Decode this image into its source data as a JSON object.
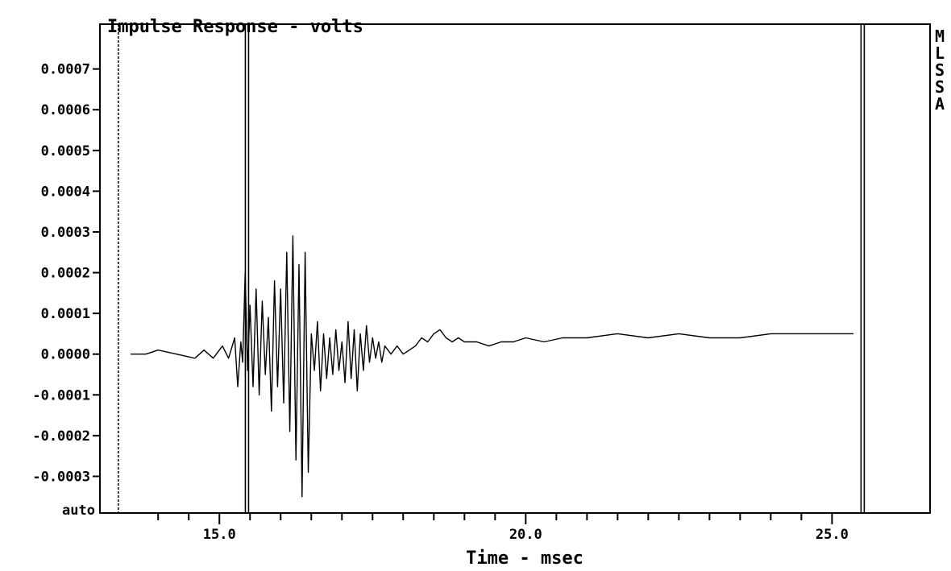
{
  "chart_data": {
    "type": "line",
    "title": "Impulse Response - volts",
    "xlabel": "Time - msec",
    "ylabel": "",
    "side_label": "MLSSA",
    "y_bottom_label": "auto",
    "xlim": [
      13.05,
      26.6
    ],
    "ylim": [
      -0.00039,
      0.00081
    ],
    "grid": false,
    "x_tick_labels": [
      {
        "value": 15.0,
        "label": "15.0"
      },
      {
        "value": 20.0,
        "label": "20.0"
      },
      {
        "value": 25.0,
        "label": "25.0"
      }
    ],
    "x_minor_ticks": [
      14.0,
      14.5,
      15.5,
      16.0,
      16.5,
      17.0,
      17.5,
      18.0,
      18.5,
      19.0,
      19.5,
      20.5,
      21.0,
      21.5,
      22.0,
      22.5,
      23.0,
      23.5,
      24.0,
      24.5
    ],
    "y_ticks": [
      {
        "value": 0.0007,
        "label": "0.0007"
      },
      {
        "value": 0.0006,
        "label": "0.0006"
      },
      {
        "value": 0.0005,
        "label": "0.0005"
      },
      {
        "value": 0.0004,
        "label": "0.0004"
      },
      {
        "value": 0.0003,
        "label": "0.0003"
      },
      {
        "value": 0.0002,
        "label": "0.0002"
      },
      {
        "value": 0.0001,
        "label": "0.0001"
      },
      {
        "value": 0.0,
        "label": "0.0000"
      },
      {
        "value": -0.0001,
        "label": "-0.0001"
      },
      {
        "value": -0.0002,
        "label": "-0.0002"
      },
      {
        "value": -0.0003,
        "label": "-0.0003"
      }
    ],
    "markers": [
      {
        "x": 13.35,
        "style": "dashed"
      },
      {
        "x": 15.45,
        "style": "double"
      },
      {
        "x": 25.5,
        "style": "double"
      }
    ],
    "series": [
      {
        "x": [
          13.55,
          13.8,
          14.0,
          14.3,
          14.6,
          14.75,
          14.9,
          15.05,
          15.15,
          15.25,
          15.3,
          15.35,
          15.38,
          15.42,
          15.46,
          15.5,
          15.55,
          15.6,
          15.65,
          15.7,
          15.75,
          15.8,
          15.85,
          15.9,
          15.95,
          16.0,
          16.05,
          16.1,
          16.15,
          16.2,
          16.25,
          16.3,
          16.35,
          16.4,
          16.45,
          16.5,
          16.55,
          16.6,
          16.65,
          16.7,
          16.75,
          16.8,
          16.85,
          16.9,
          16.95,
          17.0,
          17.05,
          17.1,
          17.15,
          17.2,
          17.25,
          17.3,
          17.35,
          17.4,
          17.45,
          17.5,
          17.55,
          17.6,
          17.65,
          17.7,
          17.8,
          17.9,
          18.0,
          18.1,
          18.2,
          18.3,
          18.4,
          18.5,
          18.6,
          18.7,
          18.8,
          18.9,
          19.0,
          19.2,
          19.4,
          19.6,
          19.8,
          20.0,
          20.3,
          20.6,
          21.0,
          21.5,
          22.0,
          22.5,
          23.0,
          23.5,
          24.0,
          24.5,
          25.0,
          25.35
        ],
        "values": [
          0.0,
          0.0,
          1e-05,
          0.0,
          -1e-05,
          1e-05,
          -1e-05,
          2e-05,
          -1e-05,
          4e-05,
          -8e-05,
          3e-05,
          -2e-05,
          0.0002,
          -4e-05,
          0.00012,
          -8e-05,
          0.00016,
          -0.0001,
          0.00013,
          -5e-05,
          9e-05,
          -0.00014,
          0.00018,
          -8e-05,
          0.00016,
          -0.00012,
          0.00025,
          -0.00019,
          0.00029,
          -0.00026,
          0.00022,
          -0.00035,
          0.00025,
          -0.00029,
          5e-05,
          -4e-05,
          8e-05,
          -9e-05,
          5e-05,
          -6e-05,
          4e-05,
          -5e-05,
          6e-05,
          -4e-05,
          3e-05,
          -7e-05,
          8e-05,
          -6e-05,
          6e-05,
          -9e-05,
          5e-05,
          -4e-05,
          7e-05,
          -2e-05,
          4e-05,
          -1e-05,
          3e-05,
          -2e-05,
          2e-05,
          0.0,
          2e-05,
          0.0,
          1e-05,
          2e-05,
          4e-05,
          3e-05,
          5e-05,
          6e-05,
          4e-05,
          3e-05,
          4e-05,
          3e-05,
          3e-05,
          2e-05,
          3e-05,
          3e-05,
          4e-05,
          3e-05,
          4e-05,
          4e-05,
          5e-05,
          4e-05,
          5e-05,
          4e-05,
          4e-05,
          5e-05,
          5e-05,
          5e-05,
          5e-05
        ]
      }
    ]
  }
}
